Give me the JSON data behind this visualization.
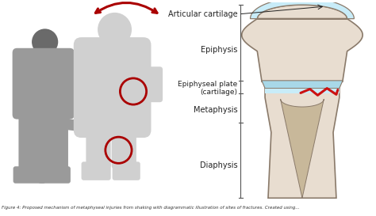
{
  "bg_color": "#ffffff",
  "caption_text": "Figure 4: Proposed mechanism of metaphyseal injuries from shaking with diagrammatic illustration of sites of fractures. Created using...",
  "labels": {
    "articular_cartilage": "Articular cartilage",
    "epiphysis": "Epiphysis",
    "epiphyseal_plate": "Epiphyseal plate\n(cartilage)",
    "metaphysis": "Metaphysis",
    "diaphysis": "Diaphysis"
  },
  "colors": {
    "bg": "#ffffff",
    "bone_outer": "#e8ddd0",
    "bone_inner": "#d4c4b0",
    "cartilage_blue": "#a8d8e8",
    "cartilage_light": "#c8ecf8",
    "marrow": "#c8b89a",
    "outline": "#8a7a6a",
    "fracture_red": "#cc1111",
    "arrow_red": "#aa0000",
    "circle_red": "#aa0000",
    "figure_gray": "#9a9a9a",
    "figure_dark": "#6a6a6a",
    "baby_gray": "#d0d0d0",
    "caption_color": "#333333",
    "bracket_color": "#555555",
    "label_color": "#222222"
  }
}
